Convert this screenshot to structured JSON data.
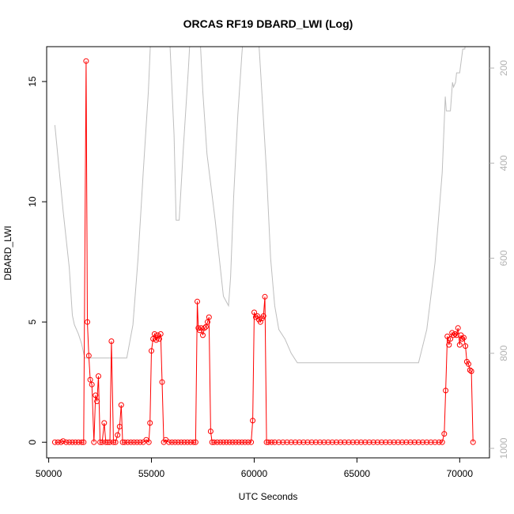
{
  "chart_data": {
    "type": "line",
    "title": "ORCAS RF19 DBARD_LWI (Log)",
    "xlabel": "UTC Seconds",
    "ylabel": "DBARD_LWI",
    "xlim": [
      49900,
      71450
    ],
    "ylim": [
      -0.65,
      16.45
    ],
    "xticks": [
      50000,
      55000,
      60000,
      65000,
      70000
    ],
    "yticks": [
      0,
      5,
      10,
      15
    ],
    "y2_ticks": [
      200,
      400,
      600,
      800,
      1000
    ],
    "y2lim": [
      1020,
      155
    ],
    "grid": false,
    "series": [
      {
        "role": "primary",
        "color": "#ff0000",
        "marker": "open-circle",
        "x": [
          50300,
          50450,
          50600,
          50700,
          50850,
          51000,
          51150,
          51300,
          51450,
          51600,
          51700,
          51820,
          51880,
          51950,
          52020,
          52100,
          52200,
          52280,
          52350,
          52420,
          52500,
          52600,
          52700,
          52780,
          52880,
          52980,
          53050,
          53150,
          53250,
          53350,
          53450,
          53530,
          53600,
          53700,
          53850,
          54000,
          54150,
          54300,
          54450,
          54600,
          54750,
          54870,
          54930,
          55000,
          55080,
          55150,
          55230,
          55300,
          55380,
          55450,
          55520,
          55600,
          55700,
          55850,
          56000,
          56150,
          56300,
          56450,
          56600,
          56750,
          56900,
          57050,
          57150,
          57230,
          57280,
          57350,
          57420,
          57500,
          57580,
          57650,
          57730,
          57800,
          57880,
          57950,
          58050,
          58200,
          58350,
          58500,
          58650,
          58800,
          58950,
          59100,
          59250,
          59400,
          59550,
          59700,
          59850,
          59930,
          60000,
          60080,
          60150,
          60230,
          60300,
          60380,
          60450,
          60520,
          60600,
          60700,
          60850,
          61000,
          61200,
          61400,
          61600,
          61800,
          62000,
          62200,
          62400,
          62600,
          62800,
          63000,
          63200,
          63400,
          63600,
          63800,
          64000,
          64200,
          64400,
          64600,
          64800,
          65000,
          65200,
          65400,
          65600,
          65800,
          66000,
          66200,
          66400,
          66600,
          66800,
          67000,
          67200,
          67400,
          67600,
          67800,
          68000,
          68200,
          68400,
          68600,
          68800,
          69000,
          69150,
          69250,
          69320,
          69400,
          69480,
          69550,
          69630,
          69700,
          69780,
          69850,
          69920,
          70000,
          70060,
          70130,
          70200,
          70280,
          70350,
          70430,
          70500,
          70570,
          70650
        ],
        "y": [
          0,
          0,
          0,
          0.05,
          0,
          0,
          0,
          0,
          0,
          0,
          0,
          15.85,
          5,
          3.6,
          2.6,
          2.4,
          0,
          1.95,
          1.7,
          2.75,
          0,
          0,
          0.8,
          0,
          0,
          0,
          4.2,
          0,
          0,
          0.3,
          0.65,
          1.55,
          0,
          0,
          0,
          0,
          0,
          0,
          0,
          0,
          0.1,
          0,
          0.8,
          3.8,
          4.3,
          4.5,
          4.25,
          4.45,
          4.3,
          4.5,
          2.5,
          0,
          0.1,
          0,
          0,
          0,
          0,
          0,
          0,
          0,
          0,
          0,
          0,
          5.85,
          4.75,
          4.65,
          4.75,
          4.45,
          4.75,
          4.8,
          5.0,
          5.2,
          0.45,
          0,
          0,
          0,
          0,
          0,
          0,
          0,
          0,
          0,
          0,
          0,
          0,
          0,
          0,
          0.9,
          5.4,
          5.2,
          5.25,
          5.1,
          5.0,
          5.15,
          5.25,
          6.05,
          0,
          0,
          0,
          0,
          0,
          0,
          0,
          0,
          0,
          0,
          0,
          0,
          0,
          0,
          0,
          0,
          0,
          0,
          0,
          0,
          0,
          0,
          0,
          0,
          0,
          0,
          0,
          0,
          0,
          0,
          0,
          0,
          0,
          0,
          0,
          0,
          0,
          0,
          0,
          0,
          0,
          0,
          0,
          0,
          0,
          0.35,
          2.15,
          4.4,
          4.05,
          4.3,
          4.55,
          4.45,
          4.5,
          4.45,
          4.75,
          4.05,
          4.45,
          4.3,
          4.35,
          4.0,
          3.35,
          3.25,
          3.0,
          2.95,
          0
        ]
      },
      {
        "role": "secondary",
        "axis": "right",
        "color": "#bebebe",
        "x": [
          50300,
          50700,
          51000,
          51150,
          51250,
          51450,
          51600,
          51750,
          52000,
          52200,
          52500,
          52800,
          53000,
          53200,
          53500,
          53800,
          54100,
          54350,
          54600,
          54850,
          55000,
          55300,
          55600,
          55900,
          56100,
          56200,
          56250,
          56350,
          56550,
          56800,
          57000,
          57200,
          57300,
          57500,
          57700,
          57900,
          58100,
          58300,
          58500,
          58750,
          58850,
          59000,
          59200,
          59400,
          59600,
          59800,
          59900,
          60100,
          60300,
          60600,
          60800,
          61000,
          61200,
          61500,
          61800,
          62100,
          62500,
          63000,
          64000,
          65000,
          66000,
          67000,
          68000,
          68400,
          68800,
          69150,
          69300,
          69350,
          69550,
          69650,
          69700,
          69800,
          69850,
          69900,
          70000,
          70150,
          70250,
          70400
        ],
        "y": [
          320,
          500,
          620,
          720,
          740,
          760,
          780,
          810,
          810,
          810,
          810,
          810,
          810,
          810,
          810,
          810,
          740,
          600,
          420,
          250,
          100,
          20,
          60,
          150,
          340,
          520,
          520,
          520,
          370,
          200,
          40,
          40,
          80,
          250,
          380,
          450,
          520,
          600,
          680,
          700,
          640,
          470,
          300,
          170,
          60,
          60,
          60,
          60,
          200,
          420,
          600,
          700,
          750,
          770,
          800,
          820,
          820,
          820,
          820,
          820,
          820,
          820,
          820,
          750,
          610,
          420,
          260,
          290,
          290,
          230,
          240,
          230,
          210,
          210,
          210,
          160,
          160,
          100
        ]
      }
    ]
  }
}
